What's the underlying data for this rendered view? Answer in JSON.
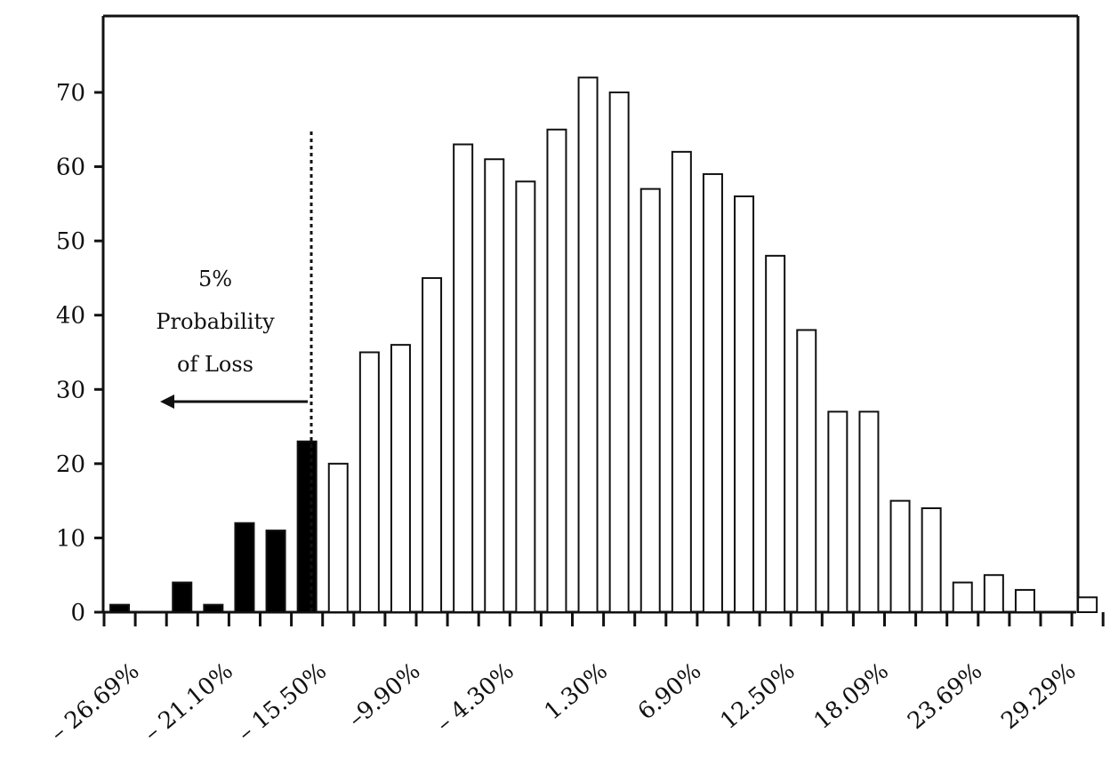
{
  "chart_data": {
    "type": "bar",
    "title": "",
    "xlabel": "",
    "ylabel": "",
    "ylim": [
      0,
      80
    ],
    "grid": false,
    "y_ticks": [
      0,
      10,
      20,
      30,
      40,
      50,
      60,
      70
    ],
    "x_tick_labels": [
      "– 26.69%",
      "– 21.10%",
      "– 15.50%",
      "–9.90%",
      "– 4.30%",
      "1.30%",
      "6.90%",
      "12.50%",
      "18.09%",
      "23.69%",
      "29.29%"
    ],
    "values": [
      1,
      0,
      4,
      1,
      12,
      11,
      23,
      20,
      35,
      36,
      45,
      63,
      61,
      58,
      65,
      72,
      70,
      57,
      62,
      59,
      56,
      48,
      38,
      27,
      27,
      15,
      14,
      4,
      5,
      3,
      0,
      2
    ],
    "loss_bar_count": 7,
    "loss_color": "#000000",
    "gain_color": "#ffffff",
    "annotation": {
      "lines": [
        "5%",
        "Probability",
        "of Loss"
      ]
    }
  }
}
